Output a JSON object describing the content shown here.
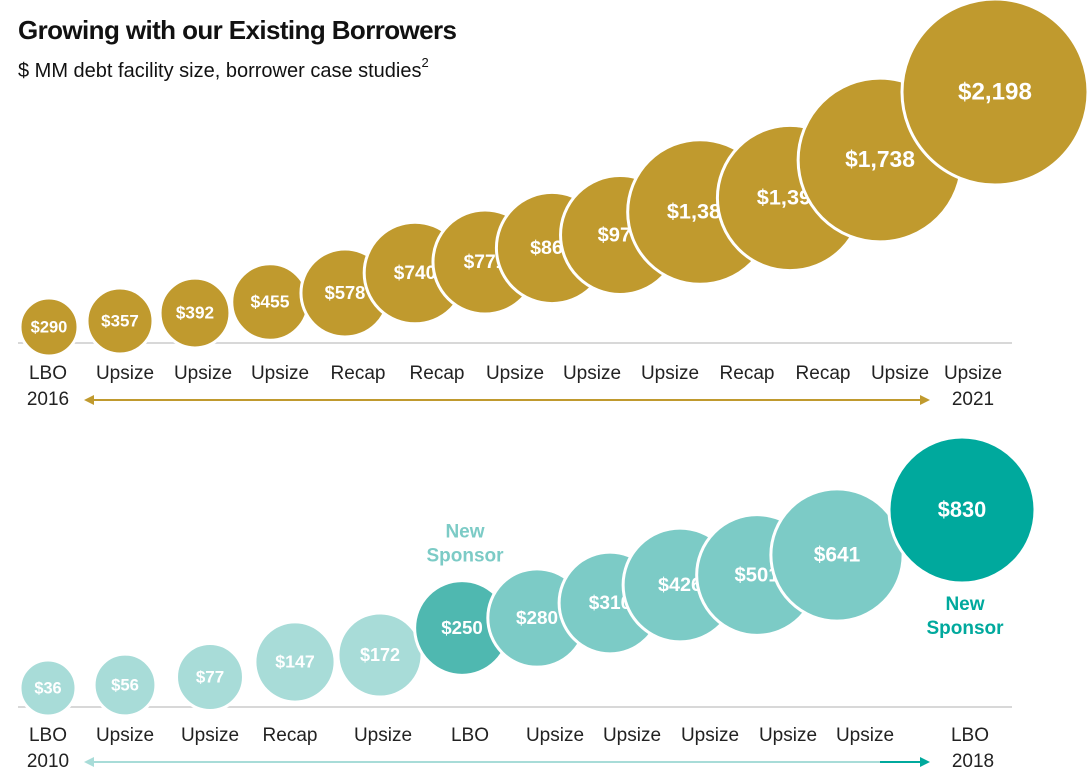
{
  "chart_data": [
    {
      "type": "bubble",
      "title": "Growing with our Existing Borrowers",
      "subtitle": "$ MM debt facility size, borrower case studies",
      "footnote_mark": "2",
      "categories": [
        "LBO",
        "Upsize",
        "Upsize",
        "Upsize",
        "Recap",
        "Recap",
        "Upsize",
        "Upsize",
        "Upsize",
        "Recap",
        "Recap",
        "Upsize",
        "Upsize"
      ],
      "values": [
        290,
        357,
        392,
        455,
        578,
        740,
        771,
        866,
        976,
        1386,
        1396,
        1738,
        2198
      ],
      "value_labels": [
        "$290",
        "$357",
        "$392",
        "$455",
        "$578",
        "$740",
        "$771",
        "$866",
        "$976",
        "$1,386",
        "$1,396",
        "$1,738",
        "$2,198"
      ],
      "color": "#c09a2e",
      "start_label": "2016",
      "end_label": "2021"
    },
    {
      "type": "bubble",
      "categories": [
        "LBO",
        "Upsize",
        "Upsize",
        "Recap",
        "Upsize",
        "LBO",
        "Upsize",
        "Upsize",
        "Upsize",
        "Upsize",
        "Upsize",
        "LBO"
      ],
      "values": [
        36,
        56,
        77,
        147,
        172,
        250,
        280,
        310,
        426,
        501,
        641,
        830
      ],
      "value_labels": [
        "$36",
        "$56",
        "$77",
        "$147",
        "$172",
        "$250",
        "$280",
        "$310",
        "$426",
        "$501",
        "$641",
        "$830"
      ],
      "colors": [
        "#a8dcd8",
        "#a8dcd8",
        "#a8dcd8",
        "#a8dcd8",
        "#a8dcd8",
        "#4fb8b0",
        "#7ccbc6",
        "#7ccbc6",
        "#7ccbc6",
        "#7ccbc6",
        "#7ccbc6",
        "#00a99d"
      ],
      "start_label": "2010",
      "end_label": "2018",
      "annotations": [
        {
          "lines": [
            "New",
            "Sponsor"
          ],
          "index": 5,
          "color": "#7ccbc6"
        },
        {
          "lines": [
            "New",
            "Sponsor"
          ],
          "index": 11,
          "color": "#00a99d"
        }
      ]
    }
  ]
}
